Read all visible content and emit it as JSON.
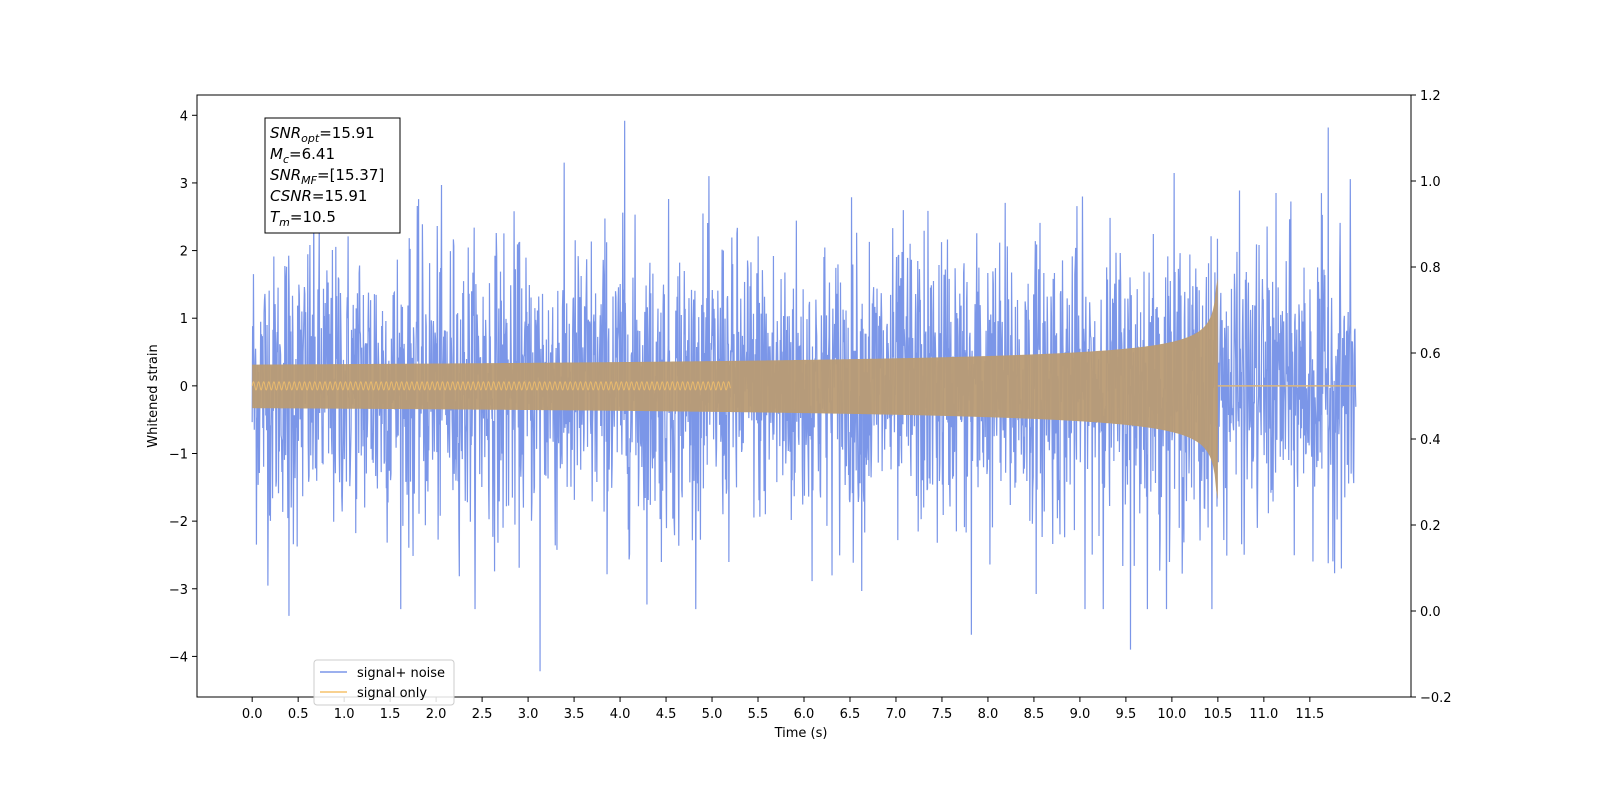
{
  "chart_data": {
    "type": "line",
    "xlabel": "Time (s)",
    "ylabel": "Whitened strain",
    "xlim": [
      -0.6,
      12.6
    ],
    "ylim": [
      -4.6,
      4.3
    ],
    "y2lim": [
      -0.2,
      1.2
    ],
    "x_ticks": [
      "0.0",
      "0.5",
      "1.0",
      "1.5",
      "2.0",
      "2.5",
      "3.0",
      "3.5",
      "4.0",
      "4.5",
      "5.0",
      "5.5",
      "6.0",
      "6.5",
      "7.0",
      "7.5",
      "8.0",
      "8.5",
      "9.0",
      "9.5",
      "10.0",
      "10.5",
      "11.0",
      "11.5"
    ],
    "y_ticks": [
      "−4",
      "−3",
      "−2",
      "−1",
      "0",
      "1",
      "2",
      "3",
      "4"
    ],
    "y2_ticks": [
      "−0.2",
      "0.0",
      "0.2",
      "0.4",
      "0.6",
      "0.8",
      "1.0",
      "1.2"
    ],
    "grid": false,
    "legend_position": "lower-left",
    "series": [
      {
        "name": "signal+ noise",
        "color": "#7b96e8",
        "x_range": [
          0.0,
          12.0
        ],
        "noise_std": 1.0,
        "notable_points": [
          {
            "x": 4.05,
            "y": 3.92
          },
          {
            "x": 3.13,
            "y": -4.22
          },
          {
            "x": 11.7,
            "y": 3.82
          },
          {
            "x": 9.55,
            "y": -3.9
          },
          {
            "x": 0.4,
            "y": -3.4
          },
          {
            "x": 7.82,
            "y": -3.68
          }
        ]
      },
      {
        "name": "signal only",
        "color": "#f5c26b",
        "type": "chirp",
        "x_range": [
          0.0,
          12.0
        ],
        "merger_time": 10.5,
        "peak_amplitude": 1.6
      }
    ],
    "annotation_box": {
      "lines": [
        {
          "main": "SNR",
          "sub": "opt",
          "rest": "=15.91"
        },
        {
          "main": "M",
          "sub": "c",
          "rest": "=6.41"
        },
        {
          "main": "SNR",
          "sub": "MF",
          "rest": "=[15.37]"
        },
        {
          "main": "CSNR",
          "sub": "",
          "rest": "=15.91"
        },
        {
          "main": "T",
          "sub": "m",
          "rest": "=10.5"
        }
      ]
    }
  }
}
